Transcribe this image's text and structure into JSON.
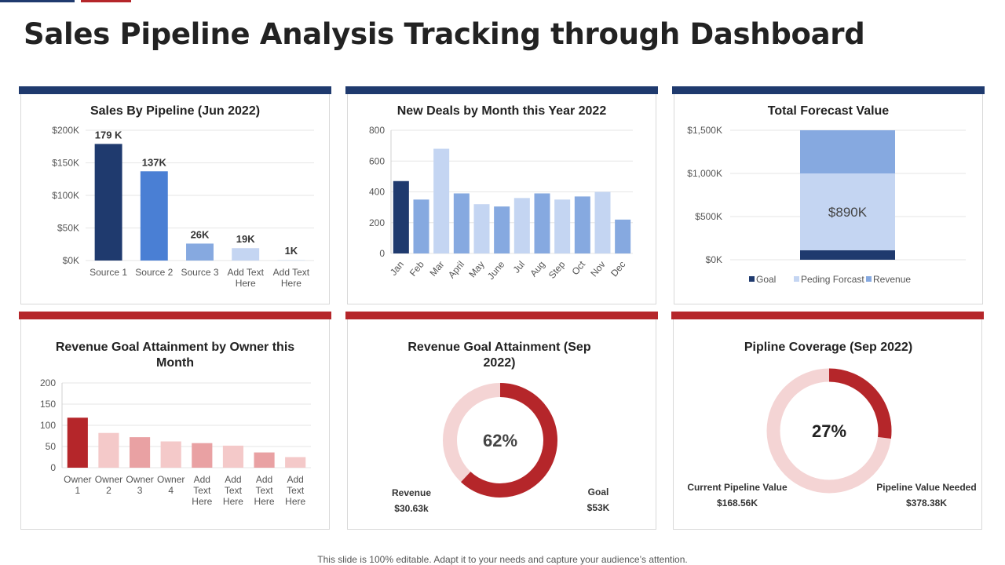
{
  "page": {
    "title": "Sales Pipeline Analysis Tracking through Dashboard",
    "footer": "This slide is 100% editable. Adapt it to your needs and capture your audience’s attention."
  },
  "colors": {
    "navy": "#1f3a6e",
    "red": "#b5262a",
    "grid": "#e6e6e6",
    "axis_text": "#555555"
  },
  "chart_data": [
    {
      "id": "sales_by_pipeline",
      "type": "bar",
      "title": "Sales By Pipeline (Jun 2022)",
      "categories": [
        "Source 1",
        "Source 2",
        "Source 3",
        "Add Text Here",
        "Add Text Here"
      ],
      "values": [
        179,
        137,
        26,
        19,
        1
      ],
      "data_labels": [
        "179 K",
        "137K",
        "26K",
        "19K",
        "1K"
      ],
      "colors": [
        "#1f3a6e",
        "#4a7fd4",
        "#86a9e0",
        "#c4d5f2",
        "#dce6f5"
      ],
      "ylim": [
        0,
        200
      ],
      "yticks": [
        0,
        50,
        100,
        150,
        200
      ],
      "ytick_labels": [
        "$0K",
        "$50K",
        "$100K",
        "$150K",
        "$200K"
      ],
      "grid": true
    },
    {
      "id": "new_deals_by_month",
      "type": "bar",
      "title": "New Deals by Month this Year 2022",
      "categories": [
        "Jan",
        "Feb",
        "Mar",
        "April",
        "May",
        "June",
        "Jul",
        "Aug",
        "Step",
        "Oct",
        "Nov",
        "Dec"
      ],
      "values": [
        470,
        350,
        680,
        390,
        320,
        305,
        360,
        390,
        350,
        370,
        400,
        220
      ],
      "colors": [
        "#1f3a6e",
        "#86a9e0",
        "#c4d5f2",
        "#86a9e0",
        "#c4d5f2",
        "#86a9e0",
        "#c4d5f2",
        "#86a9e0",
        "#c4d5f2",
        "#86a9e0",
        "#c4d5f2",
        "#86a9e0"
      ],
      "ylim": [
        0,
        800
      ],
      "yticks": [
        0,
        200,
        400,
        600,
        800
      ],
      "ytick_labels": [
        "0",
        "200",
        "400",
        "600",
        "800"
      ],
      "grid": true
    },
    {
      "id": "total_forecast_value",
      "type": "bar",
      "stacked": true,
      "title": "Total Forecast Value",
      "series": [
        {
          "name": "Goal",
          "value": 110,
          "color": "#1f3a6e"
        },
        {
          "name": "Peding Forcast",
          "value": 890,
          "color": "#c4d5f2"
        },
        {
          "name": "Revenue",
          "value": 500,
          "color": "#86a9e0"
        }
      ],
      "center_label": "$890K",
      "ylim": [
        0,
        1500
      ],
      "yticks": [
        0,
        500,
        1000,
        1500
      ],
      "ytick_labels": [
        "$0K",
        "$500K",
        "$1,000K",
        "$1,500K"
      ],
      "legend": "bottom",
      "grid": true
    },
    {
      "id": "revenue_goal_by_owner",
      "type": "bar",
      "title": "Revenue Goal Attainment by Owner this Month",
      "categories": [
        "Owner 1",
        "Owner 2",
        "Owner 3",
        "Owner 4",
        "Add Text Here",
        "Add Text Here",
        "Add Text Here",
        "Add Text Here"
      ],
      "values": [
        118,
        82,
        72,
        62,
        58,
        52,
        36,
        25
      ],
      "colors": [
        "#b5262a",
        "#f4c9c9",
        "#e9a1a3",
        "#f4c9c9",
        "#e9a1a3",
        "#f4c9c9",
        "#e9a1a3",
        "#f4c9c9"
      ],
      "ylim": [
        0,
        200
      ],
      "yticks": [
        0,
        50,
        100,
        150,
        200
      ],
      "ytick_labels": [
        "0",
        "50",
        "100",
        "150",
        "200"
      ],
      "grid": true
    },
    {
      "id": "revenue_goal_attainment",
      "type": "pie",
      "donut": true,
      "title": "Revenue Goal Attainment (Sep 2022)",
      "percent": 62,
      "center_label": "62%",
      "filled_color": "#b5262a",
      "remaining_color": "#f4d4d4",
      "annotations": [
        {
          "label": "Revenue",
          "value": "$30.63k"
        },
        {
          "label": "Goal",
          "value": "$53K"
        }
      ]
    },
    {
      "id": "pipeline_coverage",
      "type": "pie",
      "donut": true,
      "title": "Pipline Coverage (Sep 2022)",
      "percent": 27,
      "center_label": "27%",
      "filled_color": "#b5262a",
      "remaining_color": "#f4d4d4",
      "annotations": [
        {
          "label": "Current Pipeline Value",
          "value": "$168.56K"
        },
        {
          "label": "Pipeline Value Needed",
          "value": "$378.38K"
        }
      ]
    }
  ]
}
